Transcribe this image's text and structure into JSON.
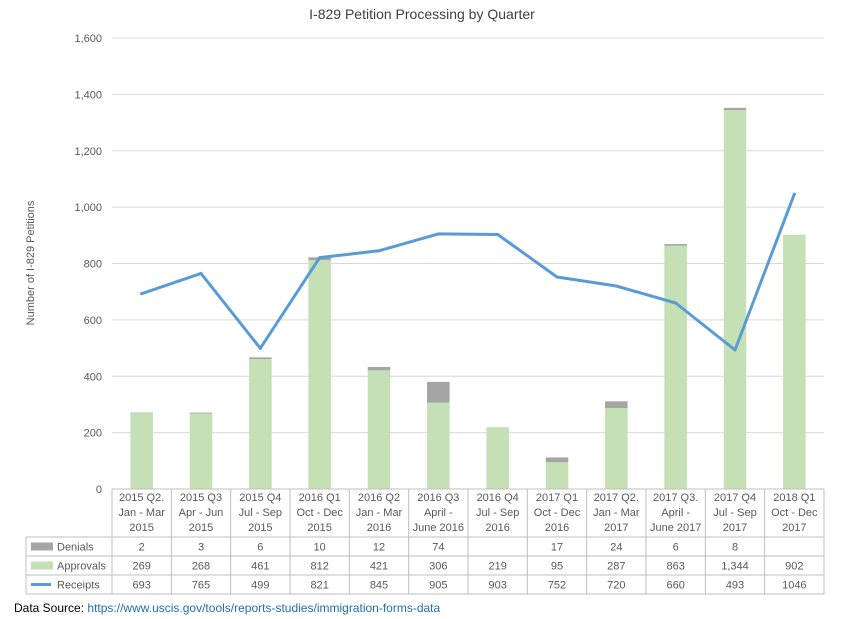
{
  "chart_data": {
    "type": "bar",
    "title": "I-829 Petition Processing by Quarter",
    "ylabel": "Number  of I-829 Petitions",
    "ylim": [
      0,
      1600
    ],
    "yticks": [
      "0",
      "200",
      "400",
      "600",
      "800",
      "1,000",
      "1,200",
      "1,400",
      "1,600"
    ],
    "grid": true,
    "categories": [
      [
        "2015 Q2.",
        "Jan - Mar",
        "2015"
      ],
      [
        "2015 Q3",
        "Apr - Jun",
        "2015"
      ],
      [
        "2015 Q4",
        "Jul - Sep",
        "2015"
      ],
      [
        "2016 Q1",
        "Oct - Dec",
        "2015"
      ],
      [
        "2016 Q2",
        "Jan - Mar",
        "2016"
      ],
      [
        "2016 Q3",
        "April -",
        "June 2016"
      ],
      [
        "2016 Q4",
        "Jul - Sep",
        "2016"
      ],
      [
        "2017 Q1",
        "Oct - Dec",
        "2016"
      ],
      [
        "2017 Q2.",
        "Jan - Mar",
        "2017"
      ],
      [
        "2017 Q3.",
        "April -",
        "June 2017"
      ],
      [
        "2017 Q4",
        "Jul - Sep",
        "2017"
      ],
      [
        "2018 Q1",
        "Oct - Dec",
        "2017"
      ]
    ],
    "series": [
      {
        "name": "Denials",
        "kind": "stacked-bar",
        "color": "#a5a5a5",
        "values": [
          2,
          3,
          6,
          10,
          12,
          74,
          null,
          17,
          24,
          6,
          8,
          null
        ],
        "labels": [
          "2",
          "3",
          "6",
          "10",
          "12",
          "74",
          "",
          "17",
          "24",
          "6",
          "8",
          ""
        ]
      },
      {
        "name": "Approvals",
        "kind": "stacked-bar",
        "color": "#c5e0b4",
        "values": [
          269,
          268,
          461,
          812,
          421,
          306,
          219,
          95,
          287,
          863,
          1344,
          902
        ],
        "labels": [
          "269",
          "268",
          "461",
          "812",
          "421",
          "306",
          "219",
          "95",
          "287",
          "863",
          "1,344",
          "902"
        ]
      },
      {
        "name": "Receipts",
        "kind": "line",
        "color": "#5b9bd5",
        "values": [
          693,
          765,
          499,
          821,
          845,
          905,
          903,
          752,
          720,
          660,
          493,
          1046
        ],
        "labels": [
          "693",
          "765",
          "499",
          "821",
          "845",
          "905",
          "903",
          "752",
          "720",
          "660",
          "493",
          "1046"
        ]
      }
    ],
    "legend": "data-table"
  },
  "source": {
    "label": "Data Source:",
    "url": "https://www.uscis.gov/tools/reports-studies/immigration-forms-data"
  }
}
